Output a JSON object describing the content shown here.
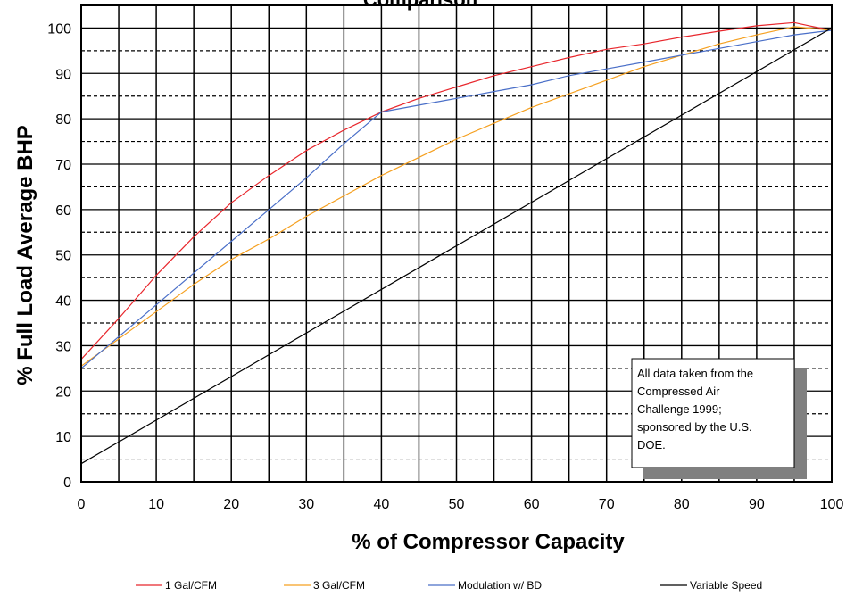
{
  "chart_data": {
    "type": "line",
    "title": "Comparison",
    "xlabel": "% of Compressor Capacity",
    "ylabel": "% Full Load Average BHP",
    "xlim": [
      0,
      100
    ],
    "ylim": [
      0,
      105
    ],
    "xticks": [
      0,
      10,
      20,
      30,
      40,
      50,
      60,
      70,
      80,
      90,
      100
    ],
    "yticks": [
      0,
      10,
      20,
      30,
      40,
      50,
      60,
      70,
      80,
      90,
      100
    ],
    "y_dashed_gridlines": [
      5,
      15,
      25,
      35,
      45,
      55,
      65,
      75,
      85,
      95
    ],
    "x_minor_gridlines": [
      5,
      15,
      25,
      35,
      45,
      55,
      65,
      75,
      85,
      95
    ],
    "grid": true,
    "legend_position": "bottom",
    "series": [
      {
        "name": "1 Gal/CFM",
        "color": "#e8262c",
        "x": [
          0,
          5,
          10,
          15,
          20,
          25,
          30,
          35,
          40,
          45,
          50,
          55,
          60,
          65,
          70,
          75,
          80,
          85,
          90,
          95,
          97,
          100
        ],
        "y": [
          27,
          36,
          45.5,
          54,
          61.5,
          67.5,
          73,
          77.5,
          81.5,
          84.5,
          87,
          89.5,
          91.5,
          93.5,
          95.3,
          96.5,
          98,
          99.3,
          100.5,
          101.2,
          100.5,
          99.5
        ]
      },
      {
        "name": "3 Gal/CFM",
        "color": "#f5a020",
        "x": [
          0,
          5,
          10,
          15,
          20,
          25,
          30,
          35,
          40,
          45,
          50,
          55,
          60,
          65,
          70,
          75,
          80,
          85,
          90,
          95,
          100
        ],
        "y": [
          25.5,
          31.5,
          37.5,
          43.5,
          49,
          53.5,
          58.5,
          63,
          67.5,
          71.5,
          75.5,
          79,
          82.5,
          85.5,
          88.5,
          91.5,
          94,
          96.5,
          98.5,
          100.3,
          99.5
        ]
      },
      {
        "name": "Modulation w/ BD",
        "color": "#4a6fc8",
        "x": [
          0,
          5,
          10,
          15,
          20,
          25,
          30,
          35,
          40,
          45,
          50,
          55,
          60,
          65,
          70,
          75,
          80,
          85,
          90,
          95,
          100
        ],
        "y": [
          25,
          32,
          39,
          46,
          53,
          60,
          67,
          74.5,
          81.5,
          83,
          84.5,
          86,
          87.5,
          89.5,
          91,
          92.5,
          94,
          95.5,
          97,
          98.5,
          99.5
        ]
      },
      {
        "name": "Variable Speed",
        "color": "#000000",
        "x": [
          0,
          100
        ],
        "y": [
          4,
          100
        ]
      }
    ],
    "annotation": {
      "lines": [
        "All data taken  from the",
        "Compressed  Air",
        "Challenge  1999;",
        "sponsored by the U.S.",
        "DOE."
      ]
    }
  }
}
